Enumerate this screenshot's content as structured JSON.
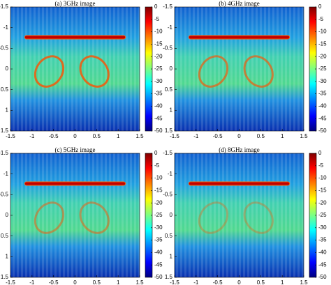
{
  "chart_data": [
    {
      "type": "heatmap",
      "title": "(a) 3GHz image",
      "xlim": [
        -1.5,
        1.5
      ],
      "xticks": [
        -1.5,
        -1,
        -0.5,
        0,
        0.5,
        1,
        1.5
      ],
      "ylim": [
        -1.5,
        1.5
      ],
      "yticks": [
        -1.5,
        -1,
        -0.5,
        0,
        0.5,
        1,
        1.5
      ],
      "y_reversed": true,
      "colormap": "jet",
      "clim": [
        -50,
        0
      ],
      "cticks": [
        0,
        -5,
        -10,
        -15,
        -20,
        -25,
        -30,
        -35,
        -40,
        -45,
        -50
      ]
    },
    {
      "type": "heatmap",
      "title": "(b) 4GHz image",
      "xlim": [
        -1.5,
        1.5
      ],
      "xticks": [
        -1.5,
        -1,
        -0.5,
        0,
        0.5,
        1,
        1.5
      ],
      "ylim": [
        -1.5,
        1.5
      ],
      "yticks": [
        -1.5,
        -1,
        -0.5,
        0,
        0.5,
        1,
        1.5
      ],
      "y_reversed": true,
      "colormap": "jet",
      "clim": [
        -50,
        0
      ],
      "cticks": [
        0,
        -5,
        -10,
        -15,
        -20,
        -25,
        -30,
        -35,
        -40,
        -45,
        -50
      ]
    },
    {
      "type": "heatmap",
      "title": "(c) 5GHz image",
      "xlim": [
        -1.5,
        1.5
      ],
      "xticks": [
        -1.5,
        -1,
        -0.5,
        0,
        0.5,
        1,
        1.5
      ],
      "ylim": [
        -1.5,
        1.5
      ],
      "yticks": [
        -1.5,
        -1,
        -0.5,
        0,
        0.5,
        1,
        1.5
      ],
      "y_reversed": true,
      "colormap": "jet",
      "clim": [
        -50,
        0
      ],
      "cticks": [
        0,
        -5,
        -10,
        -15,
        -20,
        -25,
        -30,
        -35,
        -40,
        -45,
        -50
      ]
    },
    {
      "type": "heatmap",
      "title": "(d)  8GHz image",
      "xlim": [
        -1.5,
        1.5
      ],
      "xticks": [
        -1.5,
        -1,
        -0.5,
        0,
        0.5,
        1,
        1.5
      ],
      "ylim": [
        -1.5,
        1.5
      ],
      "yticks": [
        -1.5,
        -1,
        -0.5,
        0,
        0.5,
        1,
        1.5
      ],
      "y_reversed": true,
      "colormap": "jet",
      "clim": [
        -50,
        0
      ],
      "cticks": [
        0,
        -5,
        -10,
        -15,
        -20,
        -25,
        -30,
        -35,
        -40,
        -45,
        -50
      ]
    }
  ]
}
